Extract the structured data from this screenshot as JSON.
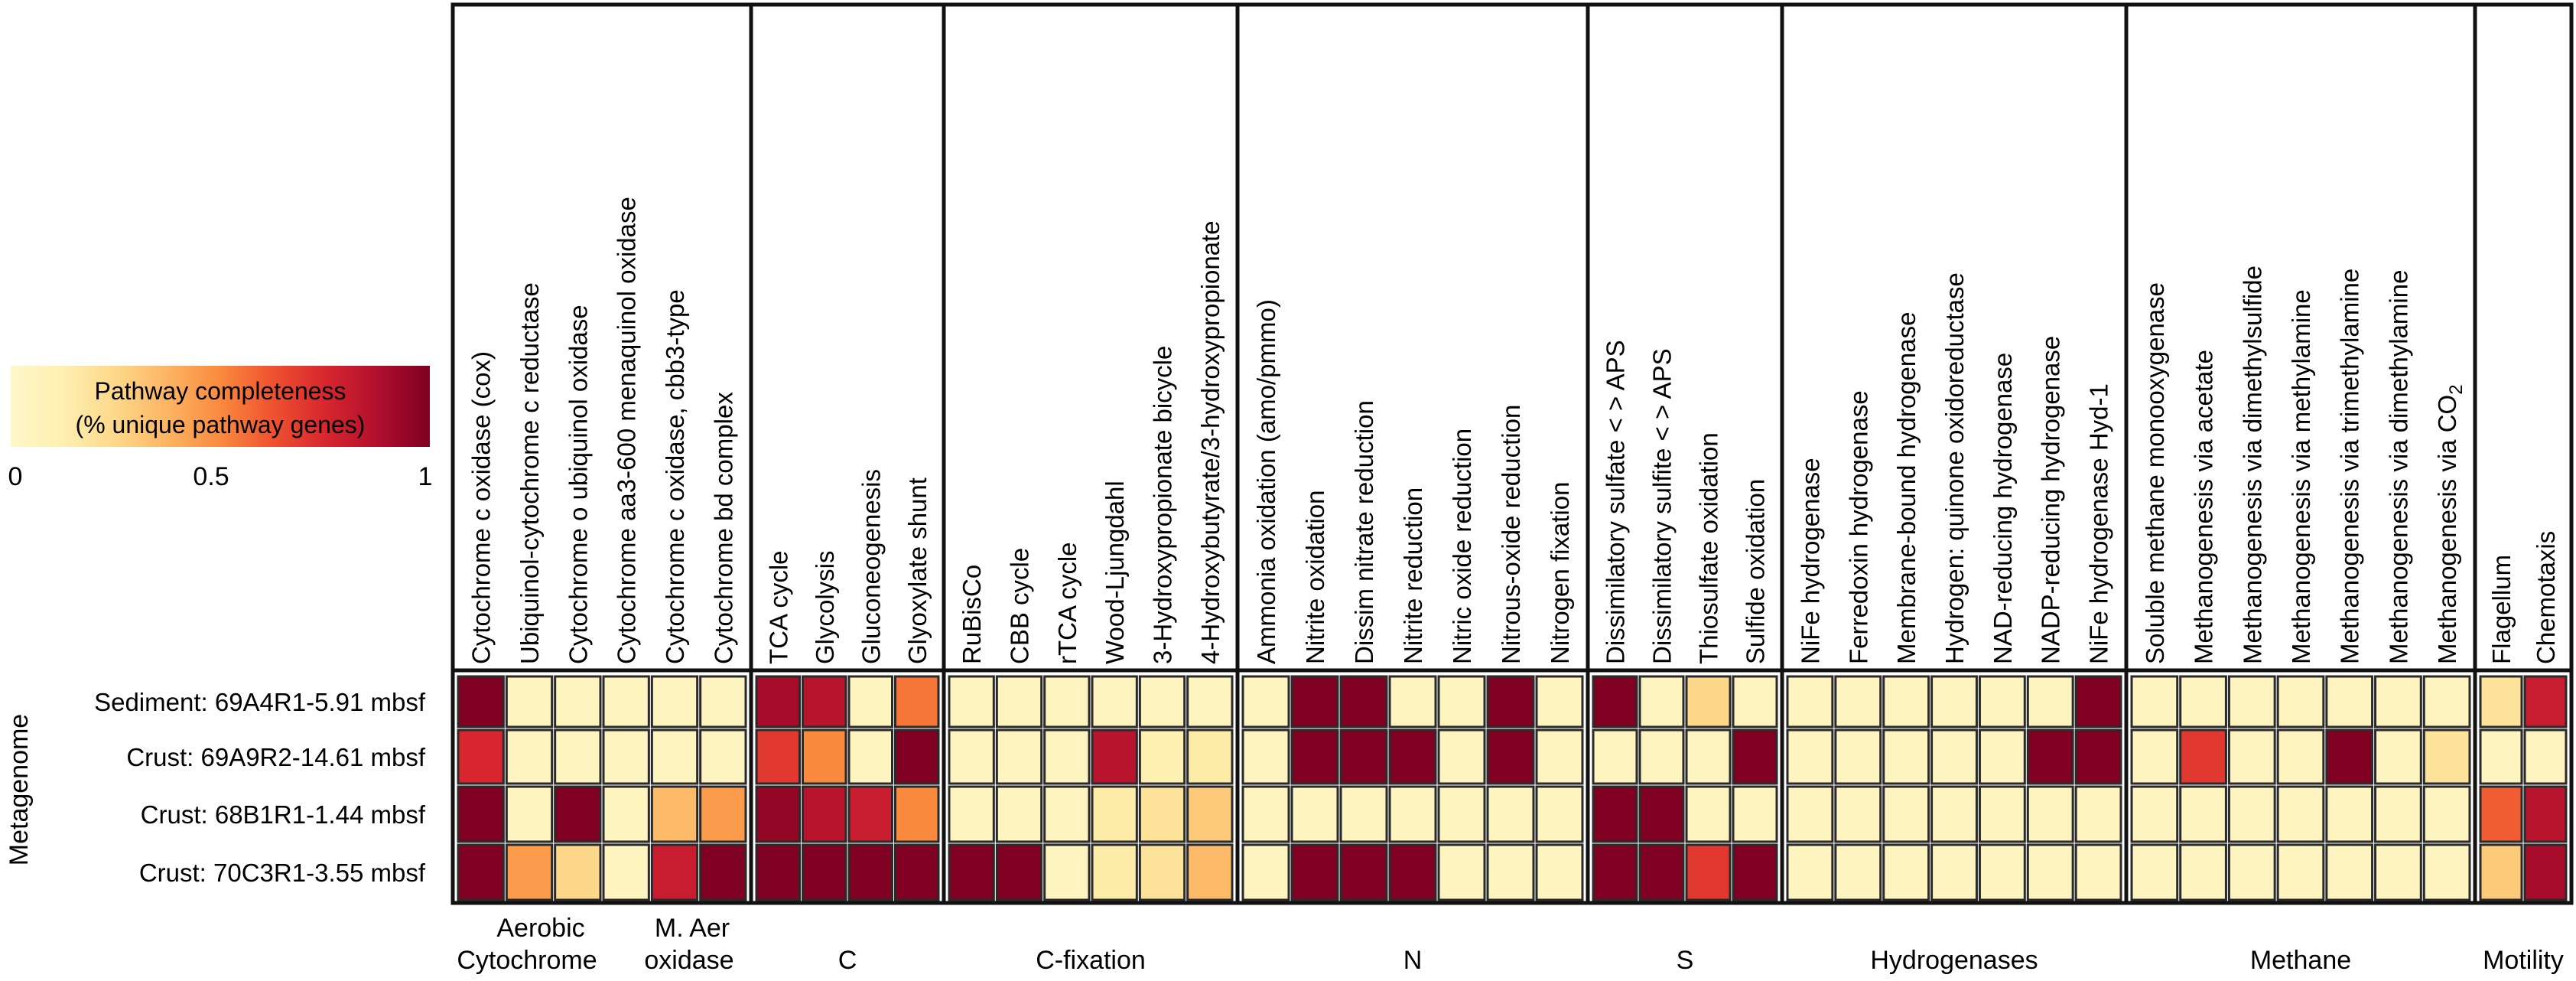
{
  "chart_data": {
    "type": "heatmap",
    "title": "",
    "ylabel": "Metagenome",
    "colorbar": {
      "title_line1": "Pathway completeness",
      "title_line2": "(% unique pathway genes)",
      "ticks": [
        "0",
        "0.5",
        "1"
      ],
      "range": [
        0,
        1
      ],
      "colors": [
        "#fff7c9",
        "#fdf0b0",
        "#fdd88a",
        "#fdb462",
        "#f98a3e",
        "#ef5230",
        "#d7262e",
        "#b10f2e",
        "#7f0021"
      ]
    },
    "rows": [
      "Sediment: 69A4R1-5.91 mbsf",
      "Crust: 69A9R2-14.61 mbsf",
      "Crust: 68B1R1-1.44 mbsf",
      "Crust: 70C3R1-3.55 mbsf"
    ],
    "groups": [
      {
        "label1": "Aerobic",
        "label2": "Cytochrome",
        "columns": [
          "Cytochrome c oxidase (cox)",
          "Ubiquinol-cytochrome c reductase",
          "Cytochrome o ubiquinol oxidase",
          "Cytochrome aa3-600 menaquinol oxidase",
          "Cytochrome c oxidase, cbb3-type",
          "Cytochrome bd complex"
        ]
      },
      {
        "label1": "",
        "label2": "C",
        "columns": [
          "TCA cycle",
          "Glycolysis",
          "Gluconeogenesis",
          "Glyoxylate shunt"
        ]
      },
      {
        "label1": "",
        "label2": "C-fixation",
        "columns": [
          "RuBisCo",
          "CBB cycle",
          "rTCA cycle",
          "Wood-Ljungdahl",
          "3-Hydroxypropionate bicycle",
          "4-Hydroxybutyrate/3-hydroxypropionate"
        ]
      },
      {
        "label1": "",
        "label2": "N",
        "columns": [
          "Ammonia oxidation (amo/pmmo)",
          "Nitrite oxidation",
          "Dissim nitrate reduction",
          "Nitrite reduction",
          "Nitric oxide reduction",
          "Nitrous-oxide reduction",
          "Nitrogen fixation"
        ]
      },
      {
        "label1": "",
        "label2": "S",
        "columns": [
          "Dissimilatory sulfate < > APS",
          "Dissimilatory sulfite < > APS",
          "Thiosulfate oxidation",
          "Sulfide oxidation"
        ]
      },
      {
        "label1": "",
        "label2": "Hydrogenases",
        "columns": [
          "NiFe hydrogenase",
          "Ferredoxin hydrogenase",
          "Membrane-bound hydrogenase",
          "Hydrogen: quinone oxidoreductase",
          "NAD-reducing hydrogenase",
          "NADP-reducing hydrogenase",
          "NiFe hydrogenase Hyd-1"
        ]
      },
      {
        "label1": "",
        "label2": "Methane",
        "columns": [
          "Soluble methane monooxygenase",
          "Methanogenesis via acetate",
          "Methanogenesis via dimethylsulfide",
          "Methanogenesis via methylamine",
          "Methanogenesis via trimethylamine",
          "Methanogenesis via dimethylamine",
          "Methanogenesis via CO2"
        ]
      },
      {
        "label1": "",
        "label2": "Motility",
        "columns": [
          "Flagellum",
          "Chemotaxis"
        ]
      }
    ],
    "group_note": {
      "label1": "M. Aer",
      "label2": "oxidase"
    },
    "values": [
      [
        1,
        0.05,
        0.05,
        0.05,
        0.05,
        0.05,
        0.9,
        0.85,
        0.05,
        0.55,
        0.05,
        0.05,
        0.05,
        0.05,
        0.05,
        0.05,
        0.05,
        1,
        1,
        0.05,
        0.05,
        1,
        0.05,
        1,
        0.05,
        0.25,
        0.05,
        0.05,
        0.05,
        0.05,
        0.05,
        0.05,
        0.05,
        1,
        0.05,
        0.05,
        0.05,
        0.05,
        0.05,
        0.05,
        0.05,
        0.2,
        0.8
      ],
      [
        0.75,
        0.05,
        0.05,
        0.05,
        0.05,
        0.05,
        0.7,
        0.5,
        0.05,
        1,
        0.05,
        0.05,
        0.05,
        0.85,
        0.12,
        0.15,
        0.05,
        1,
        1,
        1,
        0.05,
        1,
        0.05,
        0.05,
        0.05,
        0.05,
        1,
        0.05,
        0.05,
        0.05,
        0.05,
        0.05,
        1,
        1,
        0.05,
        0.7,
        0.05,
        0.05,
        1,
        0.05,
        0.2,
        0.05,
        0.05
      ],
      [
        1,
        0.05,
        1,
        0.05,
        0.35,
        0.45,
        0.95,
        0.85,
        0.8,
        0.5,
        0.05,
        0.05,
        0.05,
        0.15,
        0.2,
        0.3,
        0.05,
        0.05,
        0.05,
        0.05,
        0.05,
        0.05,
        0.05,
        1,
        1,
        0.05,
        0.05,
        0.05,
        0.05,
        0.05,
        0.05,
        0.05,
        0.05,
        0.05,
        0.05,
        0.05,
        0.05,
        0.05,
        0.05,
        0.05,
        0.05,
        0.6,
        0.85
      ],
      [
        1,
        0.45,
        0.25,
        0.05,
        0.8,
        1,
        1,
        1,
        1,
        1,
        1,
        1,
        0.05,
        0.15,
        0.2,
        0.35,
        0.05,
        1,
        1,
        1,
        0.05,
        0.05,
        0.05,
        1,
        1,
        0.7,
        1,
        0.05,
        0.05,
        0.05,
        0.05,
        0.05,
        0.05,
        0.05,
        0.05,
        0.05,
        0.05,
        0.05,
        0.05,
        0.05,
        0.05,
        0.3,
        0.9
      ]
    ]
  }
}
